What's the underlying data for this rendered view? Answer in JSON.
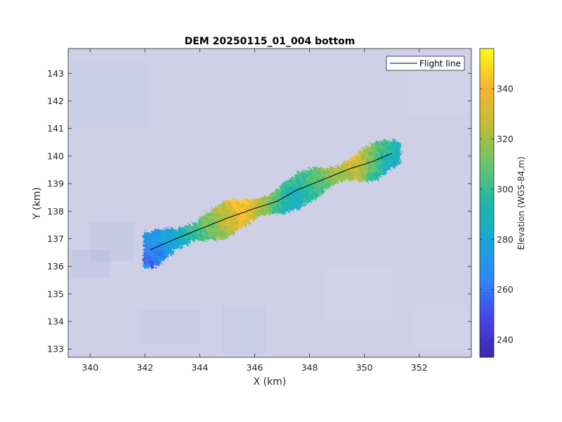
{
  "chart_data": {
    "type": "heatmap",
    "title": "DEM 20250115_01_004 bottom",
    "xlabel": "X (km)",
    "ylabel": "Y (km)",
    "xlim": [
      339.2,
      353.9
    ],
    "ylim": [
      132.7,
      143.9
    ],
    "xticks": [
      340,
      342,
      344,
      346,
      348,
      350,
      352
    ],
    "yticks": [
      133,
      134,
      135,
      136,
      137,
      138,
      139,
      140,
      141,
      142,
      143
    ],
    "grid": false,
    "legend": {
      "placement": "top-right",
      "entries": [
        "Flight line"
      ]
    },
    "colorbar": {
      "label": "Elevation (WGS-84,m)",
      "clim": [
        233,
        356
      ],
      "ticks": [
        240,
        260,
        280,
        300,
        320,
        340
      ],
      "colormap": "parula"
    },
    "flight_line": {
      "name": "Flight line",
      "color": "#000000",
      "x": [
        342.2,
        343.0,
        344.0,
        345.0,
        346.0,
        346.8,
        347.5,
        348.5,
        349.5,
        350.3,
        351.0
      ],
      "y": [
        136.6,
        136.95,
        137.35,
        137.75,
        138.1,
        138.35,
        138.75,
        139.15,
        139.55,
        139.8,
        140.1
      ]
    },
    "swath": {
      "half_width_km": 0.5,
      "elevation_along_track": [
        {
          "x": 342.3,
          "z": 265
        },
        {
          "x": 343.0,
          "z": 280
        },
        {
          "x": 344.0,
          "z": 305
        },
        {
          "x": 345.0,
          "z": 328
        },
        {
          "x": 345.6,
          "z": 340
        },
        {
          "x": 346.3,
          "z": 318
        },
        {
          "x": 347.2,
          "z": 290
        },
        {
          "x": 348.0,
          "z": 300
        },
        {
          "x": 349.0,
          "z": 320
        },
        {
          "x": 349.7,
          "z": 330
        },
        {
          "x": 350.3,
          "z": 305
        },
        {
          "x": 351.0,
          "z": 288
        }
      ]
    },
    "background": {
      "z": 270
    }
  }
}
